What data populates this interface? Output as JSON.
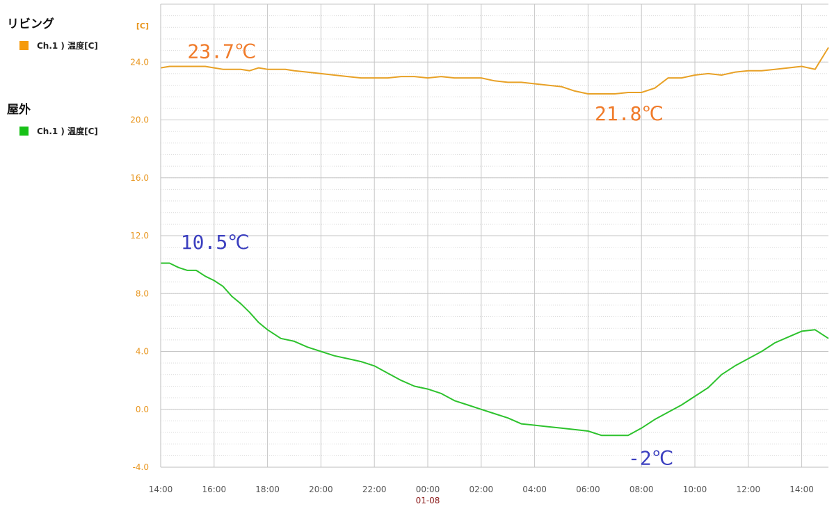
{
  "legend": {
    "groups": [
      {
        "title": "リビング",
        "item": "Ch.1 ) 温度[C]",
        "color": "#f59a0c"
      },
      {
        "title": "屋外",
        "item": "Ch.1 ) 温度[C]",
        "color": "#17c117"
      }
    ]
  },
  "chart_data": {
    "type": "line",
    "yunit": "[C]",
    "ylim": [
      -4,
      28
    ],
    "yticks": [
      "-4.0",
      "0.0",
      "4.0",
      "8.0",
      "12.0",
      "16.0",
      "20.0",
      "24.0"
    ],
    "xlim_hours": [
      14,
      39
    ],
    "xticks": [
      "14:00",
      "16:00",
      "18:00",
      "20:00",
      "22:00",
      "00:00",
      "02:00",
      "04:00",
      "06:00",
      "08:00",
      "10:00",
      "12:00",
      "14:00"
    ],
    "date_label": "01-08",
    "grid": true,
    "series": [
      {
        "name": "リビング Ch.1 ) 温度[C]",
        "color": "#e8a126",
        "points": [
          [
            14,
            23.6
          ],
          [
            14.33,
            23.7
          ],
          [
            14.67,
            23.7
          ],
          [
            15,
            23.7
          ],
          [
            15.33,
            23.7
          ],
          [
            15.67,
            23.7
          ],
          [
            16,
            23.6
          ],
          [
            16.33,
            23.5
          ],
          [
            16.67,
            23.5
          ],
          [
            17,
            23.5
          ],
          [
            17.33,
            23.4
          ],
          [
            17.67,
            23.6
          ],
          [
            18,
            23.5
          ],
          [
            18.33,
            23.5
          ],
          [
            18.67,
            23.5
          ],
          [
            19,
            23.4
          ],
          [
            19.5,
            23.3
          ],
          [
            20,
            23.2
          ],
          [
            20.5,
            23.1
          ],
          [
            21,
            23.0
          ],
          [
            21.5,
            22.9
          ],
          [
            22,
            22.9
          ],
          [
            22.5,
            22.9
          ],
          [
            23,
            23.0
          ],
          [
            23.5,
            23.0
          ],
          [
            24,
            22.9
          ],
          [
            24.5,
            23.0
          ],
          [
            25,
            22.9
          ],
          [
            25.5,
            22.9
          ],
          [
            26,
            22.9
          ],
          [
            26.5,
            22.7
          ],
          [
            27,
            22.6
          ],
          [
            27.5,
            22.6
          ],
          [
            28,
            22.5
          ],
          [
            28.5,
            22.4
          ],
          [
            29,
            22.3
          ],
          [
            29.5,
            22.0
          ],
          [
            30,
            21.8
          ],
          [
            30.5,
            21.8
          ],
          [
            31,
            21.8
          ],
          [
            31.5,
            21.9
          ],
          [
            32,
            21.9
          ],
          [
            32.5,
            22.2
          ],
          [
            33,
            22.9
          ],
          [
            33.5,
            22.9
          ],
          [
            34,
            23.1
          ],
          [
            34.5,
            23.2
          ],
          [
            35,
            23.1
          ],
          [
            35.5,
            23.3
          ],
          [
            36,
            23.4
          ],
          [
            36.5,
            23.4
          ],
          [
            37,
            23.5
          ],
          [
            37.5,
            23.6
          ],
          [
            38,
            23.7
          ],
          [
            38.5,
            23.5
          ],
          [
            39,
            25.0
          ]
        ]
      },
      {
        "name": "屋外 Ch.1 ) 温度[C]",
        "color": "#2dc22d",
        "points": [
          [
            14,
            10.1
          ],
          [
            14.33,
            10.1
          ],
          [
            14.67,
            9.8
          ],
          [
            15,
            9.6
          ],
          [
            15.33,
            9.6
          ],
          [
            15.67,
            9.2
          ],
          [
            16,
            8.9
          ],
          [
            16.33,
            8.5
          ],
          [
            16.67,
            7.8
          ],
          [
            17,
            7.3
          ],
          [
            17.33,
            6.7
          ],
          [
            17.67,
            6.0
          ],
          [
            18,
            5.5
          ],
          [
            18.5,
            4.9
          ],
          [
            19,
            4.7
          ],
          [
            19.5,
            4.3
          ],
          [
            20,
            4.0
          ],
          [
            20.5,
            3.7
          ],
          [
            21,
            3.5
          ],
          [
            21.5,
            3.3
          ],
          [
            22,
            3.0
          ],
          [
            22.5,
            2.5
          ],
          [
            23,
            2.0
          ],
          [
            23.5,
            1.6
          ],
          [
            24,
            1.4
          ],
          [
            24.5,
            1.1
          ],
          [
            25,
            0.6
          ],
          [
            25.5,
            0.3
          ],
          [
            26,
            0.0
          ],
          [
            26.5,
            -0.3
          ],
          [
            27,
            -0.6
          ],
          [
            27.5,
            -1.0
          ],
          [
            28,
            -1.1
          ],
          [
            28.5,
            -1.2
          ],
          [
            29,
            -1.3
          ],
          [
            29.5,
            -1.4
          ],
          [
            30,
            -1.5
          ],
          [
            30.5,
            -1.8
          ],
          [
            31,
            -1.8
          ],
          [
            31.5,
            -1.8
          ],
          [
            32,
            -1.3
          ],
          [
            32.5,
            -0.7
          ],
          [
            33,
            -0.2
          ],
          [
            33.5,
            0.3
          ],
          [
            34,
            0.9
          ],
          [
            34.5,
            1.5
          ],
          [
            35,
            2.4
          ],
          [
            35.5,
            3.0
          ],
          [
            36,
            3.5
          ],
          [
            36.5,
            4.0
          ],
          [
            37,
            4.6
          ],
          [
            37.5,
            5.0
          ],
          [
            38,
            5.4
          ],
          [
            38.5,
            5.5
          ],
          [
            39,
            4.9
          ]
        ]
      }
    ],
    "annotations": [
      {
        "text": "23.7℃",
        "x": 15,
        "y": 23.7,
        "color": "#f07b2a"
      },
      {
        "text": "21.8℃",
        "x": 30.25,
        "y": 21.8,
        "color": "#f07b2a"
      },
      {
        "text": "10.5℃",
        "x": 14.75,
        "y": 10.5,
        "color": "#3b3fbf"
      },
      {
        "text": "-2℃",
        "x": 31.5,
        "y": -2.0,
        "color": "#3b3fbf"
      }
    ]
  }
}
